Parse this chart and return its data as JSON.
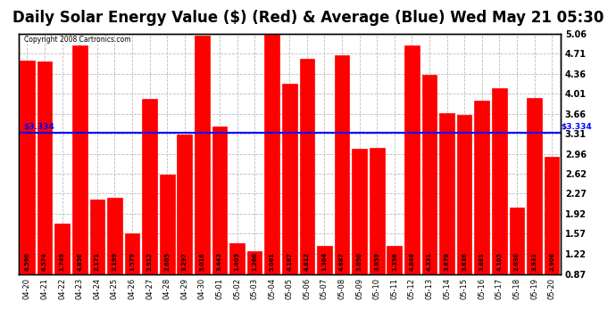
{
  "title": "Daily Solar Energy Value ($) (Red) & Average (Blue) Wed May 21 05:30",
  "copyright": "Copyright 2008 Cartronics.com",
  "categories": [
    "04-20",
    "04-21",
    "04-22",
    "04-23",
    "04-24",
    "04-25",
    "04-26",
    "04-27",
    "04-28",
    "04-29",
    "04-30",
    "05-01",
    "05-02",
    "05-03",
    "05-04",
    "05-05",
    "05-06",
    "05-07",
    "05-08",
    "05-09",
    "05-10",
    "05-11",
    "05-12",
    "05-13",
    "05-14",
    "05-15",
    "05-16",
    "05-17",
    "05-18",
    "05-19",
    "05-20"
  ],
  "values": [
    4.59,
    4.574,
    1.749,
    4.856,
    2.171,
    2.199,
    1.579,
    3.912,
    2.605,
    3.297,
    5.016,
    3.443,
    1.405,
    1.26,
    5.061,
    4.187,
    4.612,
    1.364,
    4.687,
    3.05,
    3.059,
    1.356,
    4.846,
    4.331,
    3.678,
    3.636,
    3.881,
    4.105,
    2.03,
    3.931,
    2.906
  ],
  "average": 3.334,
  "bar_color": "#ff0000",
  "avg_line_color": "#0000ff",
  "background_color": "#ffffff",
  "plot_bg_color": "#ffffff",
  "grid_color": "#bbbbbb",
  "title_fontsize": 12,
  "ymin": 0.87,
  "ymax": 5.06,
  "yticks": [
    0.87,
    1.22,
    1.57,
    1.92,
    2.27,
    2.62,
    2.96,
    3.31,
    3.66,
    4.01,
    4.36,
    4.71,
    5.06
  ]
}
